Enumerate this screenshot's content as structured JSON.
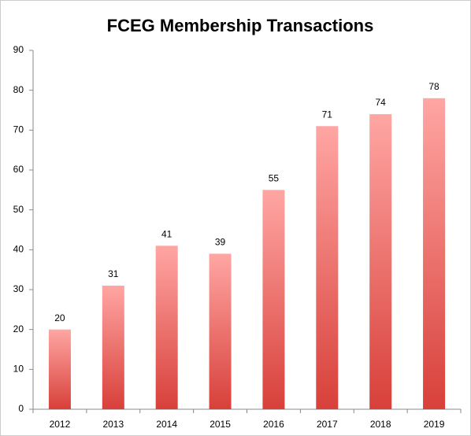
{
  "chart_data": {
    "type": "bar",
    "title": "FCEG Membership Transactions",
    "categories": [
      "2012",
      "2013",
      "2014",
      "2015",
      "2016",
      "2017",
      "2018",
      "2019"
    ],
    "values": [
      20,
      31,
      41,
      39,
      55,
      71,
      74,
      78
    ],
    "gradient": [
      "#ffa6a3",
      "#d8403a"
    ],
    "ylim": [
      0,
      90
    ],
    "yticks": [
      0,
      10,
      20,
      30,
      40,
      50,
      60,
      70,
      80,
      90
    ],
    "grid": false
  }
}
